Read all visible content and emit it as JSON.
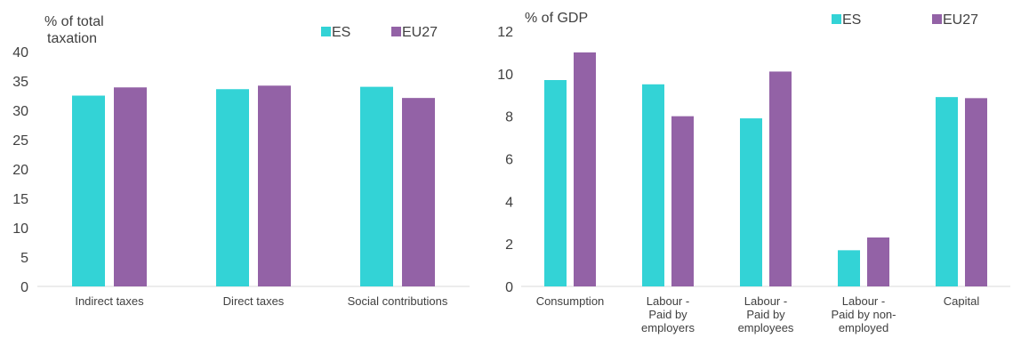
{
  "chart_data": [
    {
      "type": "bar",
      "ylabel": [
        "% of total",
        "taxation"
      ],
      "categories": [
        [
          "Indirect taxes"
        ],
        [
          "Direct taxes"
        ],
        [
          "Social contributions"
        ]
      ],
      "series": [
        {
          "name": "ES",
          "color": "#33d3d6",
          "values": [
            32.5,
            33.6,
            34.0
          ]
        },
        {
          "name": "EU27",
          "color": "#9362a6",
          "values": [
            33.9,
            34.2,
            32.1
          ]
        }
      ],
      "ylim": [
        0,
        40
      ],
      "yticks": [
        0,
        5,
        10,
        15,
        20,
        25,
        30,
        35,
        40
      ],
      "grid": false,
      "legend": "top-right"
    },
    {
      "type": "bar",
      "ylabel": [
        "% of GDP"
      ],
      "categories": [
        [
          "Consumption"
        ],
        [
          "Labour -",
          "Paid by",
          "employers"
        ],
        [
          "Labour -",
          "Paid by",
          "employees"
        ],
        [
          "Labour -",
          "Paid by non-",
          "employed"
        ],
        [
          "Capital"
        ]
      ],
      "series": [
        {
          "name": "ES",
          "color": "#33d3d6",
          "values": [
            9.7,
            9.5,
            7.9,
            1.7,
            8.9
          ]
        },
        {
          "name": "EU27",
          "color": "#9362a6",
          "values": [
            11.0,
            8.0,
            10.1,
            2.3,
            8.85
          ]
        }
      ],
      "ylim": [
        0,
        12
      ],
      "yticks": [
        0,
        2,
        4,
        6,
        8,
        10,
        12
      ],
      "grid": false,
      "legend": "top-right"
    }
  ]
}
